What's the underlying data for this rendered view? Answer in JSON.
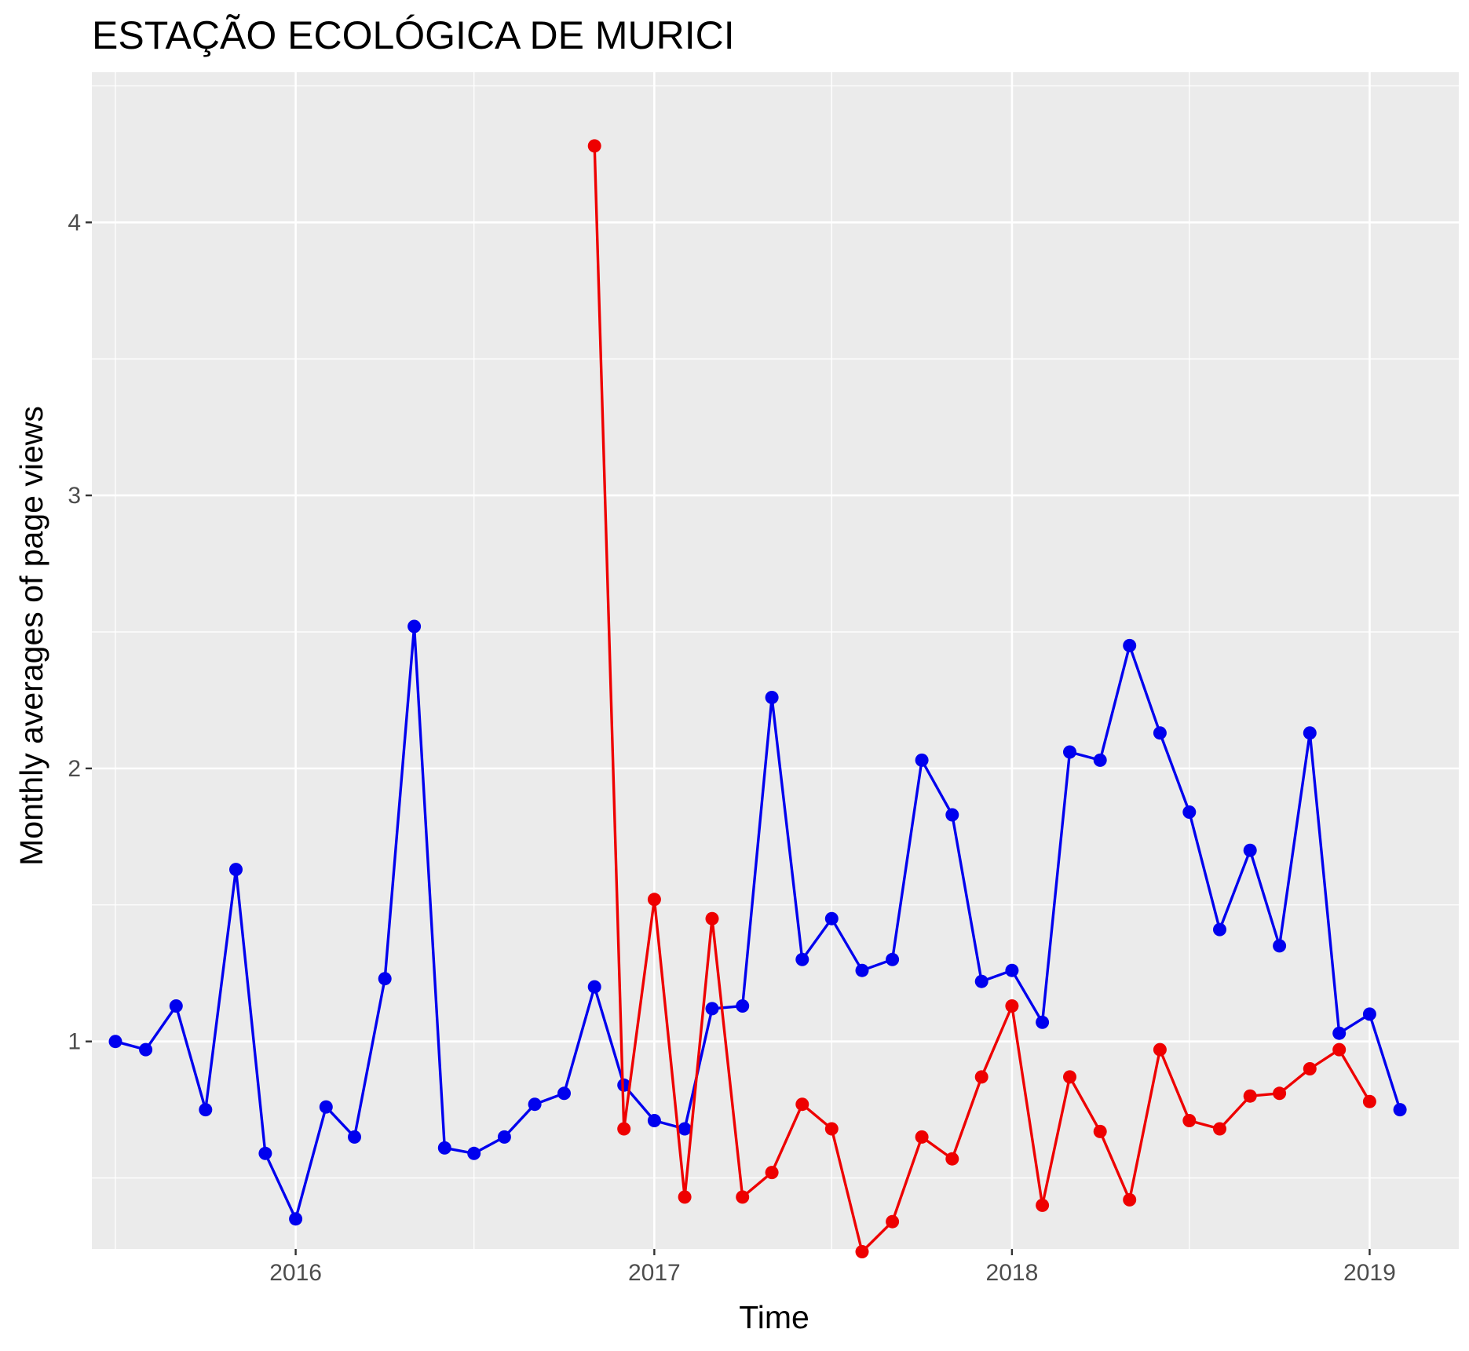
{
  "chart_data": {
    "type": "line",
    "title": "ESTAÇÃO ECOLÓGICA DE MURICI",
    "xlabel": "Time",
    "ylabel": "Monthly averages of page views",
    "x_ticks": [
      "2016",
      "2017",
      "2018",
      "2019"
    ],
    "y_ticks": [
      1,
      2,
      3,
      4
    ],
    "xlim": [
      "2015-06-07",
      "2019-04-02"
    ],
    "ylim": [
      0.24,
      4.55
    ],
    "grid": true,
    "legend": "none",
    "colors": {
      "panel": "#ebebeb",
      "grid": "#ffffff",
      "tick": "#333333"
    },
    "series": [
      {
        "color": "#0000ee",
        "points": [
          [
            "2015-07-01",
            1.0
          ],
          [
            "2015-08-01",
            0.97
          ],
          [
            "2015-09-01",
            1.13
          ],
          [
            "2015-10-01",
            0.75
          ],
          [
            "2015-11-01",
            1.63
          ],
          [
            "2015-12-01",
            0.59
          ],
          [
            "2016-01-01",
            0.35
          ],
          [
            "2016-02-01",
            0.76
          ],
          [
            "2016-03-01",
            0.65
          ],
          [
            "2016-04-01",
            1.23
          ],
          [
            "2016-05-01",
            2.52
          ],
          [
            "2016-06-01",
            0.61
          ],
          [
            "2016-07-01",
            0.59
          ],
          [
            "2016-08-01",
            0.65
          ],
          [
            "2016-09-01",
            0.77
          ],
          [
            "2016-10-01",
            0.81
          ],
          [
            "2016-11-01",
            1.2
          ],
          [
            "2016-12-01",
            0.84
          ],
          [
            "2017-01-01",
            0.71
          ],
          [
            "2017-02-01",
            0.68
          ],
          [
            "2017-03-01",
            1.12
          ],
          [
            "2017-04-01",
            1.13
          ],
          [
            "2017-05-01",
            2.26
          ],
          [
            "2017-06-01",
            1.3
          ],
          [
            "2017-07-01",
            1.45
          ],
          [
            "2017-08-01",
            1.26
          ],
          [
            "2017-09-01",
            1.3
          ],
          [
            "2017-10-01",
            2.03
          ],
          [
            "2017-11-01",
            1.83
          ],
          [
            "2017-12-01",
            1.22
          ],
          [
            "2018-01-01",
            1.26
          ],
          [
            "2018-02-01",
            1.07
          ],
          [
            "2018-03-01",
            2.06
          ],
          [
            "2018-04-01",
            2.03
          ],
          [
            "2018-05-01",
            2.45
          ],
          [
            "2018-06-01",
            2.13
          ],
          [
            "2018-07-01",
            1.84
          ],
          [
            "2018-08-01",
            1.41
          ],
          [
            "2018-09-01",
            1.7
          ],
          [
            "2018-10-01",
            1.35
          ],
          [
            "2018-11-01",
            2.13
          ],
          [
            "2018-12-01",
            1.03
          ],
          [
            "2019-01-01",
            1.1
          ],
          [
            "2019-02-01",
            0.75
          ]
        ]
      },
      {
        "color": "#ee0000",
        "points": [
          [
            "2016-11-01",
            4.28
          ],
          [
            "2016-12-01",
            0.68
          ],
          [
            "2017-01-01",
            1.52
          ],
          [
            "2017-02-01",
            0.43
          ],
          [
            "2017-03-01",
            1.45
          ],
          [
            "2017-04-01",
            0.43
          ],
          [
            "2017-05-01",
            0.52
          ],
          [
            "2017-06-01",
            0.77
          ],
          [
            "2017-07-01",
            0.68
          ],
          [
            "2017-08-01",
            0.23
          ],
          [
            "2017-09-01",
            0.34
          ],
          [
            "2017-10-01",
            0.65
          ],
          [
            "2017-11-01",
            0.57
          ],
          [
            "2017-12-01",
            0.87
          ],
          [
            "2018-01-01",
            1.13
          ],
          [
            "2018-02-01",
            0.4
          ],
          [
            "2018-03-01",
            0.87
          ],
          [
            "2018-04-01",
            0.67
          ],
          [
            "2018-05-01",
            0.42
          ],
          [
            "2018-06-01",
            0.97
          ],
          [
            "2018-07-01",
            0.71
          ],
          [
            "2018-08-01",
            0.68
          ],
          [
            "2018-09-01",
            0.8
          ],
          [
            "2018-10-01",
            0.81
          ],
          [
            "2018-11-01",
            0.9
          ],
          [
            "2018-12-01",
            0.97
          ],
          [
            "2019-01-01",
            0.78
          ]
        ]
      }
    ]
  }
}
